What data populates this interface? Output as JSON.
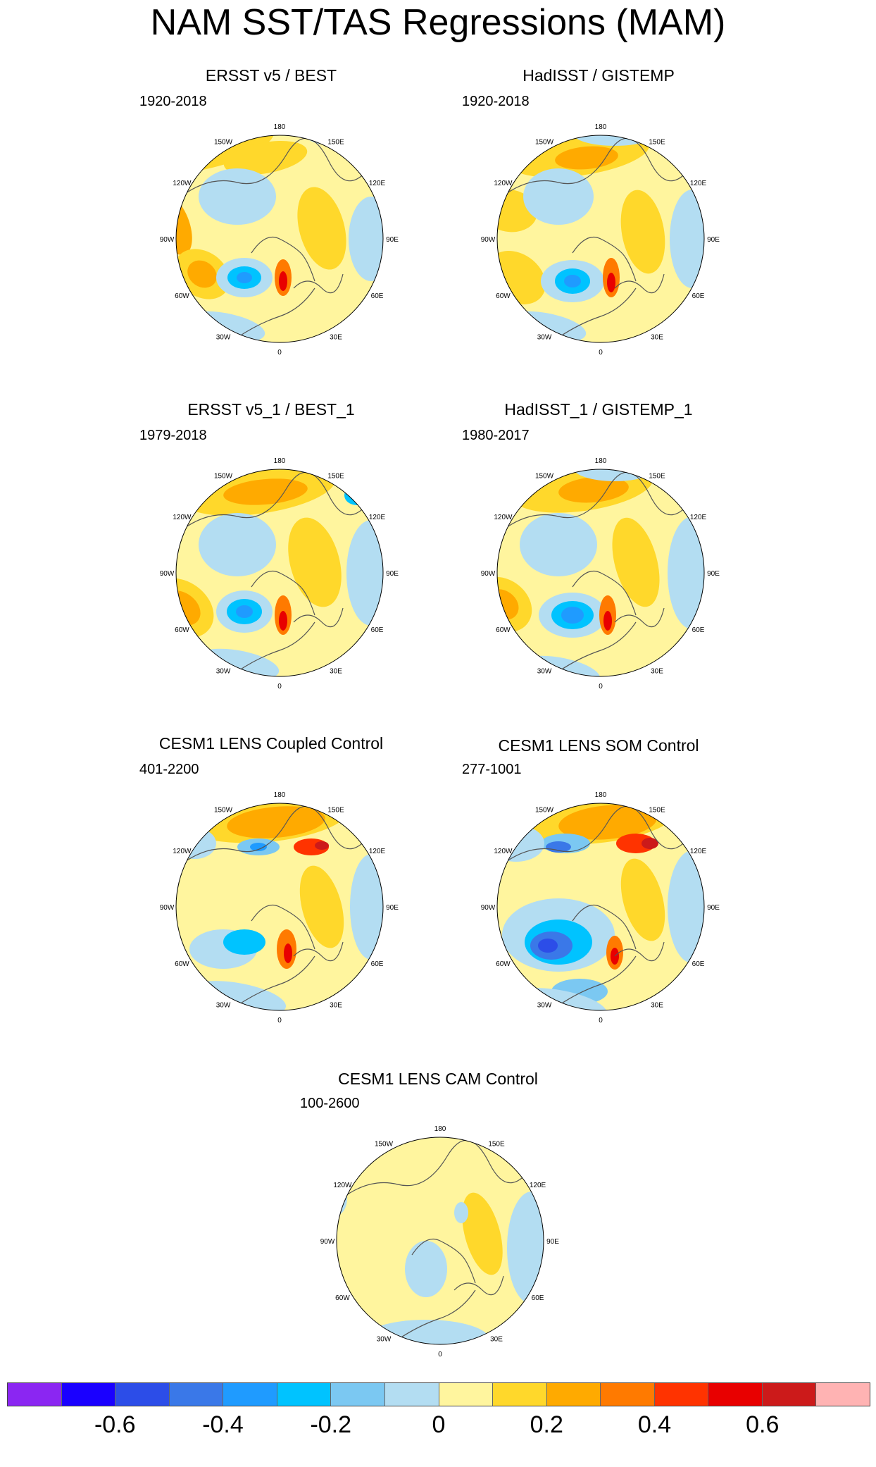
{
  "figure": {
    "title": "NAM SST/TAS Regressions (MAM)"
  },
  "chart_data": {
    "type": "heatmap",
    "description_units": "regression coefficient",
    "panels": [
      {
        "title": "ERSST v5 / BEST",
        "period": "1920-2018"
      },
      {
        "title": "HadISST / GISTEMP",
        "period": "1920-2018"
      },
      {
        "title": "ERSST v5_1 / BEST_1",
        "period": "1979-2018"
      },
      {
        "title": "HadISST_1 / GISTEMP_1",
        "period": "1980-2017"
      },
      {
        "title": "CESM1 LENS Coupled Control",
        "period": "401-2200"
      },
      {
        "title": "CESM1 LENS SOM Control",
        "period": "277-1001"
      },
      {
        "title": "CESM1 LENS CAM Control",
        "period": "100-2600"
      }
    ],
    "longitude_labels": [
      "180",
      "150E",
      "120E",
      "90E",
      "60E",
      "30E",
      "0",
      "30W",
      "60W",
      "90W",
      "120W",
      "150W"
    ],
    "colorbar": {
      "colors": [
        "#8b26f2",
        "#1a00ff",
        "#2c4de8",
        "#3a78e8",
        "#1f9bff",
        "#00c3ff",
        "#7bc8f2",
        "#b3ddf2",
        "#fff59e",
        "#ffd82b",
        "#ffaa00",
        "#ff7a00",
        "#ff3300",
        "#e80000",
        "#cc1a1a",
        "#ffb3b3"
      ],
      "tick_labels": [
        "-0.6",
        "-0.4",
        "-0.2",
        "0",
        "0.2",
        "0.4",
        "0.6"
      ],
      "tick_values": [
        -0.6,
        -0.4,
        -0.2,
        0,
        0.2,
        0.4,
        0.6
      ],
      "range": [
        -0.8,
        0.8
      ]
    }
  }
}
